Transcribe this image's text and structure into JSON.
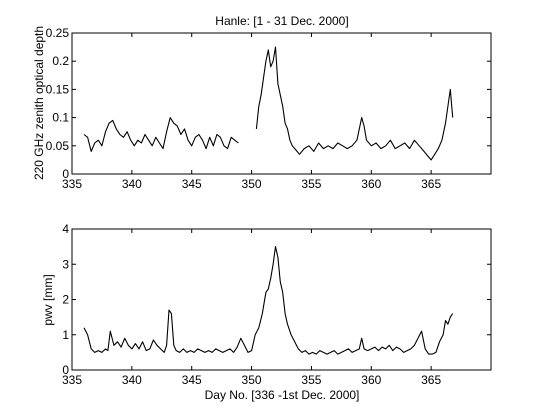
{
  "chart_data": [
    {
      "type": "line",
      "title": "Hanle: [1 - 31 Dec. 2000]",
      "xlabel": "",
      "ylabel": "220 GHz zenith optical depth",
      "xlim": [
        335,
        370
      ],
      "ylim": [
        0,
        0.25
      ],
      "xticks": [
        "335",
        "340",
        "345",
        "350",
        "355",
        "360",
        "365"
      ],
      "yticks": [
        "0",
        "0.05",
        "0.1",
        "0.15",
        "0.2",
        "0.25"
      ],
      "grid": false,
      "series": [
        {
          "segments": [
            {
              "x": [
                336.0,
                336.3,
                336.6,
                336.9,
                337.2,
                337.5,
                337.8,
                338.1,
                338.4,
                338.7,
                339.0,
                339.3,
                339.6,
                339.9,
                340.2,
                340.5,
                340.8,
                341.1,
                341.4,
                341.7,
                342.0,
                342.3,
                342.6,
                342.9,
                343.2,
                343.5,
                343.8,
                344.1,
                344.4,
                344.7,
                345.0,
                345.3,
                345.6,
                345.9,
                346.2,
                346.5,
                346.8,
                347.1,
                347.4,
                347.7,
                348.0,
                348.3,
                348.6,
                348.9
              ],
              "y": [
                0.07,
                0.065,
                0.04,
                0.055,
                0.06,
                0.05,
                0.075,
                0.09,
                0.095,
                0.08,
                0.07,
                0.065,
                0.075,
                0.06,
                0.05,
                0.06,
                0.055,
                0.07,
                0.06,
                0.05,
                0.065,
                0.055,
                0.045,
                0.075,
                0.1,
                0.09,
                0.085,
                0.07,
                0.08,
                0.06,
                0.05,
                0.065,
                0.07,
                0.06,
                0.045,
                0.065,
                0.05,
                0.07,
                0.065,
                0.05,
                0.045,
                0.065,
                0.06,
                0.055
              ]
            },
            {
              "x": [
                350.4,
                350.6,
                350.8,
                351.0,
                351.2,
                351.4,
                351.6,
                351.8,
                352.0,
                352.2,
                352.4,
                352.6,
                352.8,
                353.0,
                353.2,
                353.4,
                353.6,
                353.8,
                354.0,
                354.4,
                354.8,
                355.2,
                355.6,
                356.0,
                356.4,
                356.8,
                357.2,
                357.6,
                358.0,
                358.4,
                358.8,
                359.0,
                359.2,
                359.4,
                359.6,
                360.0,
                360.4,
                360.8,
                361.2,
                361.6,
                362.0,
                362.4,
                362.8,
                363.2,
                363.6,
                364.0,
                364.4,
                364.8,
                365.0,
                365.3,
                365.6,
                365.9,
                366.2,
                366.4,
                366.6,
                366.8
              ],
              "y": [
                0.08,
                0.12,
                0.14,
                0.17,
                0.2,
                0.22,
                0.19,
                0.2,
                0.225,
                0.16,
                0.14,
                0.12,
                0.09,
                0.08,
                0.06,
                0.05,
                0.045,
                0.04,
                0.035,
                0.045,
                0.05,
                0.04,
                0.055,
                0.045,
                0.05,
                0.045,
                0.055,
                0.05,
                0.045,
                0.05,
                0.06,
                0.08,
                0.1,
                0.085,
                0.06,
                0.05,
                0.055,
                0.045,
                0.05,
                0.06,
                0.045,
                0.05,
                0.055,
                0.045,
                0.06,
                0.05,
                0.04,
                0.03,
                0.025,
                0.035,
                0.045,
                0.06,
                0.09,
                0.12,
                0.15,
                0.1
              ]
            }
          ]
        }
      ]
    },
    {
      "type": "line",
      "title": "",
      "xlabel": "Day No. [336 -1st Dec. 2000]",
      "ylabel": "pwv [mm]",
      "xlim": [
        335,
        370
      ],
      "ylim": [
        0,
        4
      ],
      "xticks": [
        "335",
        "340",
        "345",
        "350",
        "355",
        "360",
        "365"
      ],
      "yticks": [
        "0",
        "1",
        "2",
        "3",
        "4"
      ],
      "grid": false,
      "series": [
        {
          "segments": [
            {
              "x": [
                336.0,
                336.3,
                336.6,
                336.9,
                337.2,
                337.5,
                337.8,
                338.0,
                338.2,
                338.5,
                338.8,
                339.1,
                339.4,
                339.7,
                340.0,
                340.3,
                340.6,
                340.9,
                341.2,
                341.5,
                341.8,
                342.1,
                342.4,
                342.7,
                342.9,
                343.1,
                343.3,
                343.5,
                343.7,
                344.0,
                344.3,
                344.6,
                344.9,
                345.2,
                345.5,
                345.8,
                346.1,
                346.4,
                346.7,
                347.0,
                347.3,
                347.6,
                347.9,
                348.2,
                348.5,
                348.8,
                349.1,
                349.4,
                349.7,
                350.0,
                350.3,
                350.6,
                350.9,
                351.2,
                351.4,
                351.6,
                351.8,
                352.0,
                352.2,
                352.4,
                352.6,
                352.8,
                353.0,
                353.3,
                353.6,
                353.9,
                354.2,
                354.5,
                354.8,
                355.1,
                355.4,
                355.7,
                356.0,
                356.3,
                356.6,
                356.9,
                357.2,
                357.5,
                357.8,
                358.1,
                358.4,
                358.7,
                359.0,
                359.2,
                359.4,
                359.7,
                360.0,
                360.3,
                360.6,
                360.9,
                361.2,
                361.5,
                361.8,
                362.1,
                362.4,
                362.7,
                363.0,
                363.3,
                363.6,
                363.9,
                364.2,
                364.5,
                364.8,
                365.1,
                365.4,
                365.7,
                366.0,
                366.2,
                366.4,
                366.6,
                366.8
              ],
              "y": [
                1.2,
                1.0,
                0.6,
                0.5,
                0.55,
                0.5,
                0.6,
                0.55,
                1.1,
                0.7,
                0.8,
                0.65,
                0.9,
                0.7,
                0.6,
                0.75,
                0.6,
                0.8,
                0.55,
                0.6,
                0.85,
                0.7,
                0.6,
                0.5,
                0.7,
                1.7,
                1.6,
                0.7,
                0.55,
                0.5,
                0.6,
                0.5,
                0.55,
                0.5,
                0.6,
                0.55,
                0.5,
                0.55,
                0.5,
                0.6,
                0.55,
                0.5,
                0.55,
                0.6,
                0.5,
                0.65,
                0.9,
                0.7,
                0.5,
                0.55,
                1.0,
                1.2,
                1.6,
                2.2,
                2.3,
                2.6,
                3.0,
                3.5,
                3.2,
                2.5,
                2.2,
                1.6,
                1.3,
                1.0,
                0.8,
                0.6,
                0.5,
                0.55,
                0.45,
                0.5,
                0.45,
                0.55,
                0.5,
                0.45,
                0.5,
                0.55,
                0.45,
                0.5,
                0.55,
                0.6,
                0.5,
                0.55,
                0.6,
                0.9,
                0.6,
                0.55,
                0.6,
                0.65,
                0.55,
                0.65,
                0.6,
                0.7,
                0.55,
                0.65,
                0.6,
                0.5,
                0.55,
                0.6,
                0.7,
                0.9,
                1.1,
                0.6,
                0.45,
                0.45,
                0.5,
                0.8,
                1.0,
                1.4,
                1.3,
                1.5,
                1.6
              ]
            }
          ]
        }
      ]
    }
  ]
}
